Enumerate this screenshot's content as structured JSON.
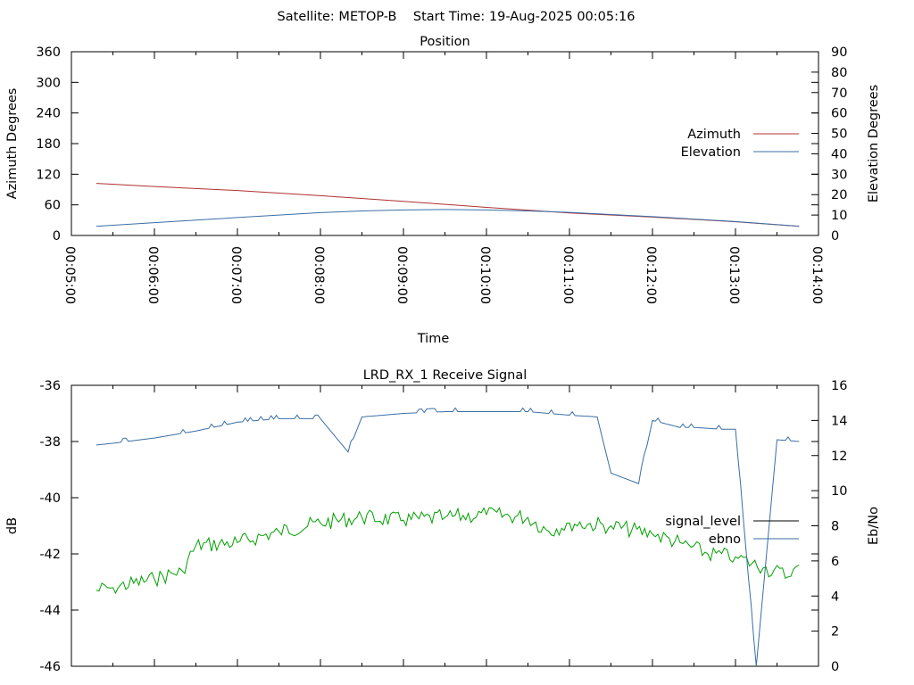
{
  "page_title": "Satellite: METOP-B    Start Time: 19-Aug-2025 00:05:16",
  "chart_data": [
    {
      "type": "line",
      "title": "Position",
      "xlabel": "Time",
      "ylabel": "Azimuth Degrees",
      "y2label": "Elevation Degrees",
      "x_ticks": [
        "00:05:00",
        "00:06:00",
        "00:07:00",
        "00:08:00",
        "00:09:00",
        "00:10:00",
        "00:11:00",
        "00:12:00",
        "00:13:00",
        "00:14:00"
      ],
      "xlim": [
        "00:05:00",
        "00:14:00"
      ],
      "ylim": [
        0,
        360
      ],
      "y_ticks": [
        0,
        60,
        120,
        180,
        240,
        300,
        360
      ],
      "y2lim": [
        0,
        90
      ],
      "y2_ticks": [
        0,
        10,
        20,
        30,
        40,
        50,
        60,
        70,
        80,
        90
      ],
      "legend_position": "right",
      "grid": false,
      "series": [
        {
          "name": "Azimuth",
          "axis": "y",
          "color": "#b03030",
          "x": [
            "00:05:18",
            "00:06:00",
            "00:07:00",
            "00:08:00",
            "00:09:00",
            "00:10:00",
            "00:11:00",
            "00:12:00",
            "00:13:00",
            "00:13:46"
          ],
          "values": [
            102,
            96,
            88,
            78,
            67,
            55,
            44,
            36,
            27,
            18
          ]
        },
        {
          "name": "Elevation",
          "axis": "y2",
          "color": "#3a6ea5",
          "x": [
            "00:05:18",
            "00:06:00",
            "00:07:00",
            "00:08:00",
            "00:08:30",
            "00:09:00",
            "00:09:30",
            "00:10:00",
            "00:10:30",
            "00:11:00",
            "00:12:00",
            "00:13:00",
            "00:13:46"
          ],
          "values": [
            4.5,
            6.3,
            8.8,
            11.2,
            12,
            12.5,
            12.7,
            12.5,
            12,
            11.3,
            9.2,
            6.8,
            4.5
          ]
        }
      ]
    },
    {
      "type": "line",
      "title": "LRD_RX_1 Receive Signal",
      "xlabel": "",
      "ylabel": "dB",
      "y2label": "Eb/No",
      "ylim": [
        -46,
        -36
      ],
      "y_ticks": [
        -36,
        -38,
        -40,
        -42,
        -44,
        -46
      ],
      "y2lim": [
        0,
        16
      ],
      "y2_ticks": [
        0,
        2,
        4,
        6,
        8,
        10,
        12,
        14,
        16
      ],
      "xlim": [
        "00:05:00",
        "00:14:00"
      ],
      "legend_position": "right",
      "grid": false,
      "series": [
        {
          "name": "signal_level",
          "axis": "y",
          "color": "#00a000",
          "x": [
            "00:05:18",
            "00:05:30",
            "00:06:00",
            "00:06:20",
            "00:06:30",
            "00:07:00",
            "00:07:30",
            "00:08:00",
            "00:08:30",
            "00:09:00",
            "00:09:30",
            "00:10:00",
            "00:10:30",
            "00:10:45",
            "00:11:00",
            "00:11:30",
            "00:12:00",
            "00:12:20",
            "00:12:40",
            "00:13:00",
            "00:13:20",
            "00:13:40",
            "00:13:46"
          ],
          "values": [
            -43.3,
            -43.2,
            -42.9,
            -42.6,
            -41.7,
            -41.6,
            -41.2,
            -40.9,
            -40.7,
            -40.8,
            -40.7,
            -40.6,
            -40.7,
            -41.2,
            -40.9,
            -41.0,
            -41.3,
            -41.6,
            -42.0,
            -42.1,
            -42.5,
            -42.8,
            -42.4
          ]
        },
        {
          "name": "ebno",
          "axis": "y2",
          "color": "#3a6ea5",
          "x": [
            "00:05:18",
            "00:05:30",
            "00:06:00",
            "00:06:30",
            "00:07:00",
            "00:07:30",
            "00:08:00",
            "00:08:20",
            "00:08:30",
            "00:08:45",
            "00:09:00",
            "00:09:30",
            "00:10:00",
            "00:10:30",
            "00:11:00",
            "00:11:20",
            "00:11:30",
            "00:11:50",
            "00:12:00",
            "00:12:20",
            "00:12:30",
            "00:12:50",
            "00:13:00",
            "00:13:15",
            "00:13:30",
            "00:13:46"
          ],
          "values": [
            12.6,
            12.7,
            13.0,
            13.4,
            13.9,
            14.1,
            14.1,
            12.2,
            14.2,
            14.3,
            14.4,
            14.5,
            14.5,
            14.5,
            14.3,
            14.2,
            11.0,
            10.4,
            14.0,
            13.6,
            13.6,
            13.5,
            13.5,
            0.0,
            12.9,
            12.8
          ]
        }
      ]
    }
  ]
}
